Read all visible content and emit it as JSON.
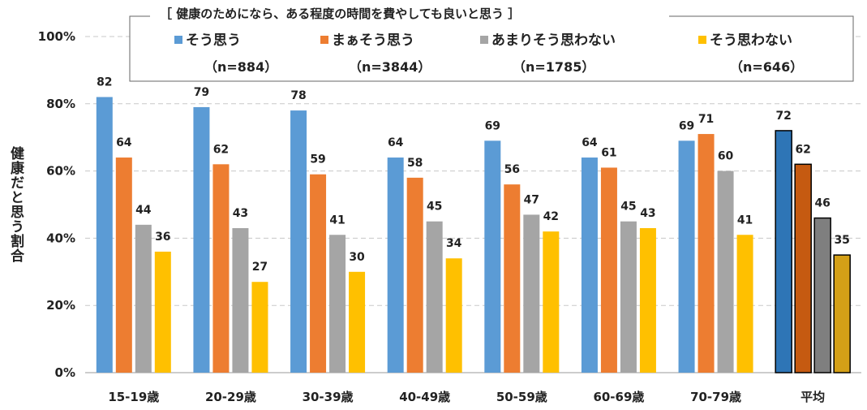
{
  "chart_data": {
    "type": "bar",
    "legend_title": "［ 健康のためになら、ある程度の時間を費やしても良いと思う ］",
    "ylabel": "健康だと思う割合",
    "categories": [
      "15-19歳",
      "20-29歳",
      "30-39歳",
      "40-49歳",
      "50-59歳",
      "60-69歳",
      "70-79歳",
      "平均"
    ],
    "yticks": [
      "0%",
      "20%",
      "40%",
      "60%",
      "80%",
      "100%"
    ],
    "ylim": [
      0,
      100
    ],
    "grid": true,
    "legend_position": "top",
    "series": [
      {
        "name": "そう思う",
        "n": "（n=884）",
        "color": "#5B9BD5",
        "avg_color": "#2E75B6",
        "values": [
          82,
          79,
          78,
          64,
          69,
          64,
          69,
          72
        ]
      },
      {
        "name": "まぁそう思う",
        "n": "（n=3844）",
        "color": "#ED7D31",
        "avg_color": "#C55A11",
        "values": [
          64,
          62,
          59,
          58,
          56,
          61,
          71,
          62
        ]
      },
      {
        "name": "あまりそう思わない",
        "n": "（n=1785）",
        "color": "#A5A5A5",
        "avg_color": "#7F7F7F",
        "values": [
          44,
          43,
          41,
          45,
          47,
          45,
          60,
          46
        ]
      },
      {
        "name": "そう思わない",
        "n": "（n=646）",
        "color": "#FFC000",
        "avg_color": "#D4A017",
        "values": [
          36,
          27,
          30,
          34,
          42,
          43,
          41,
          35
        ]
      }
    ]
  }
}
